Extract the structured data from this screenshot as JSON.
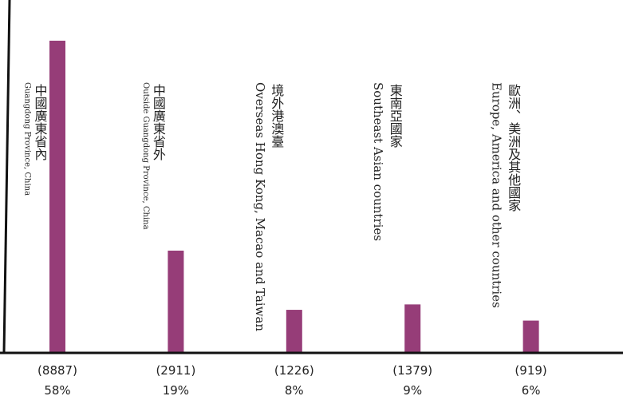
{
  "chart_data": {
    "type": "bar",
    "categories": [
      "中國廣東省內",
      "中國廣東省外",
      "境外港澳臺",
      "東南亞國家",
      "歐洲、美洲及其他國家"
    ],
    "categories_en": [
      "Guangdong Province, China",
      "Outside Guangdong Province, China",
      "Overseas Hong Kong, Macao and Taiwan",
      "Southeast Asian countries",
      "Europe, America and other countries"
    ],
    "values": [
      8887,
      2911,
      1226,
      1379,
      919
    ],
    "value_labels": [
      "(8887)",
      "(2911)",
      "(1226)",
      "(1379)",
      "(919)"
    ],
    "percents": [
      58,
      19,
      8,
      9,
      6
    ],
    "percent_labels": [
      "58%",
      "19%",
      "8%",
      "9%",
      "6%"
    ],
    "color": "#963d78",
    "ylim": [
      0,
      10000
    ]
  }
}
